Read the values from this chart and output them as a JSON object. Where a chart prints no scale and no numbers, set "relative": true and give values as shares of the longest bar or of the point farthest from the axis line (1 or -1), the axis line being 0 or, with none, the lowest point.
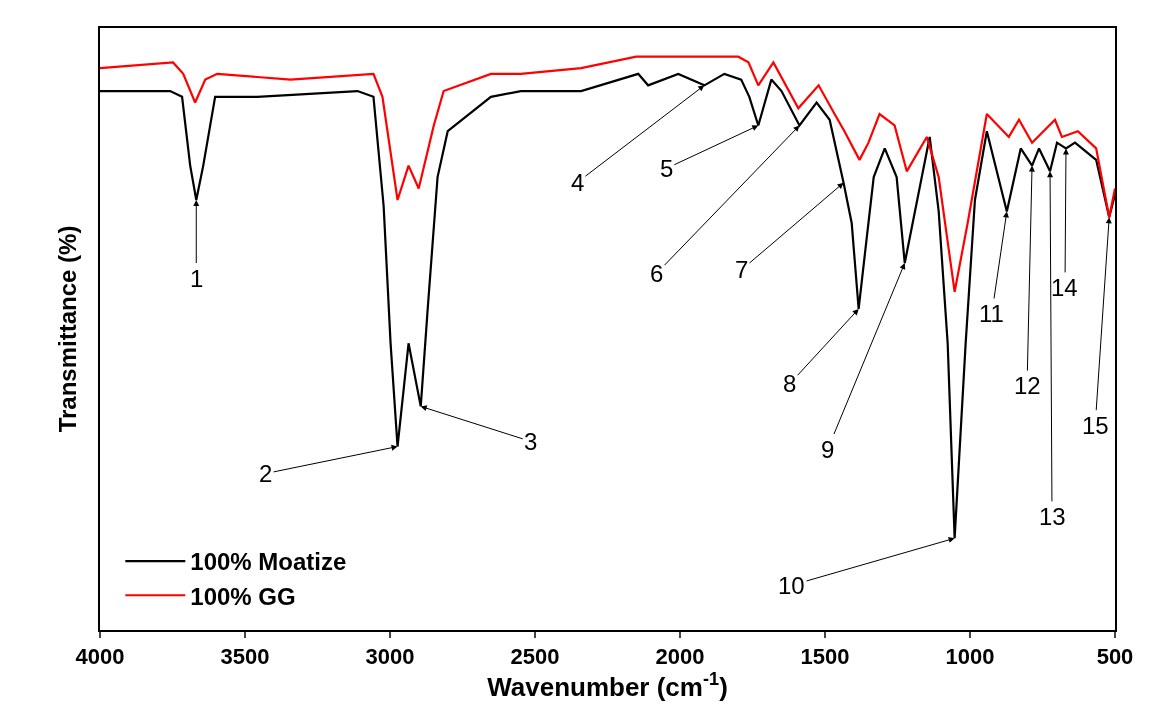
{
  "chart_data": {
    "type": "line",
    "relative": true,
    "xlabel": "Wavenumber (cm$^{-1}$)",
    "ylabel": "Transmittance (%)",
    "xlim": [
      4000,
      500
    ],
    "xticks": [
      4000,
      3500,
      3000,
      2500,
      2000,
      1500,
      1000,
      500
    ],
    "grid": false,
    "legend": "bottom left",
    "marker": "none",
    "line_style": "solid",
    "series": [
      {
        "name": "100% Moatize",
        "color": "#000000",
        "x": [
          4000,
          3758,
          3717,
          3689,
          3668,
          3644,
          3603,
          3458,
          3112,
          3057,
          3022,
          2998,
          2974,
          2936,
          2894,
          2870,
          2836,
          2801,
          2652,
          2549,
          2341,
          2144,
          2110,
          2006,
          1916,
          1847,
          1789,
          1761,
          1730,
          1685,
          1650,
          1588,
          1529,
          1484,
          1436,
          1408,
          1384,
          1357,
          1332,
          1294,
          1253,
          1225,
          1139,
          1108,
          1077,
          1053,
          1015,
          983,
          942,
          873,
          825,
          786,
          762,
          724,
          700,
          669,
          638,
          565,
          520,
          500
        ],
        "values": [
          0.94,
          0.94,
          0.93,
          0.81,
          0.75,
          0.81,
          0.93,
          0.93,
          0.94,
          0.93,
          0.74,
          0.5,
          0.32,
          0.5,
          0.39,
          0.56,
          0.79,
          0.87,
          0.93,
          0.94,
          0.94,
          0.97,
          0.95,
          0.97,
          0.95,
          0.97,
          0.96,
          0.93,
          0.88,
          0.96,
          0.94,
          0.88,
          0.92,
          0.89,
          0.78,
          0.71,
          0.56,
          0.68,
          0.79,
          0.84,
          0.79,
          0.64,
          0.86,
          0.73,
          0.5,
          0.16,
          0.5,
          0.75,
          0.87,
          0.73,
          0.84,
          0.81,
          0.84,
          0.8,
          0.85,
          0.84,
          0.85,
          0.82,
          0.72,
          0.76
        ]
      },
      {
        "name": "100% GG",
        "color": "#ff0000",
        "x": [
          4000,
          3748,
          3713,
          3672,
          3637,
          3596,
          3343,
          3057,
          3026,
          2974,
          2936,
          2901,
          2849,
          2815,
          2652,
          2549,
          2341,
          2151,
          1996,
          1799,
          1764,
          1730,
          1678,
          1592,
          1522,
          1467,
          1433,
          1381,
          1350,
          1312,
          1260,
          1218,
          1149,
          1108,
          1053,
          1008,
          942,
          866,
          831,
          786,
          707,
          683,
          628,
          565,
          520,
          500
        ],
        "values": [
          0.98,
          0.99,
          0.97,
          0.92,
          0.96,
          0.97,
          0.96,
          0.97,
          0.93,
          0.75,
          0.81,
          0.77,
          0.88,
          0.94,
          0.97,
          0.97,
          0.98,
          1.0,
          1.0,
          1.0,
          0.99,
          0.95,
          0.99,
          0.91,
          0.95,
          0.9,
          0.87,
          0.82,
          0.85,
          0.9,
          0.88,
          0.8,
          0.86,
          0.79,
          0.59,
          0.71,
          0.9,
          0.86,
          0.89,
          0.85,
          0.89,
          0.86,
          0.87,
          0.84,
          0.72,
          0.77
        ]
      }
    ],
    "annotations": [
      {
        "text": "1",
        "x": 3668,
        "y": 0.75
      },
      {
        "text": "2",
        "x": 2974,
        "y": 0.32
      },
      {
        "text": "3",
        "x": 2894,
        "y": 0.39
      },
      {
        "text": "4",
        "x": 1916,
        "y": 0.95
      },
      {
        "text": "5",
        "x": 1730,
        "y": 0.88
      },
      {
        "text": "6",
        "x": 1588,
        "y": 0.88
      },
      {
        "text": "7",
        "x": 1436,
        "y": 0.78
      },
      {
        "text": "8",
        "x": 1384,
        "y": 0.56
      },
      {
        "text": "9",
        "x": 1225,
        "y": 0.64
      },
      {
        "text": "10",
        "x": 1053,
        "y": 0.16
      },
      {
        "text": "11",
        "x": 873,
        "y": 0.73
      },
      {
        "text": "12",
        "x": 786,
        "y": 0.81
      },
      {
        "text": "13",
        "x": 724,
        "y": 0.8
      },
      {
        "text": "14",
        "x": 669,
        "y": 0.84
      },
      {
        "text": "15",
        "x": 520,
        "y": 0.72
      }
    ]
  }
}
